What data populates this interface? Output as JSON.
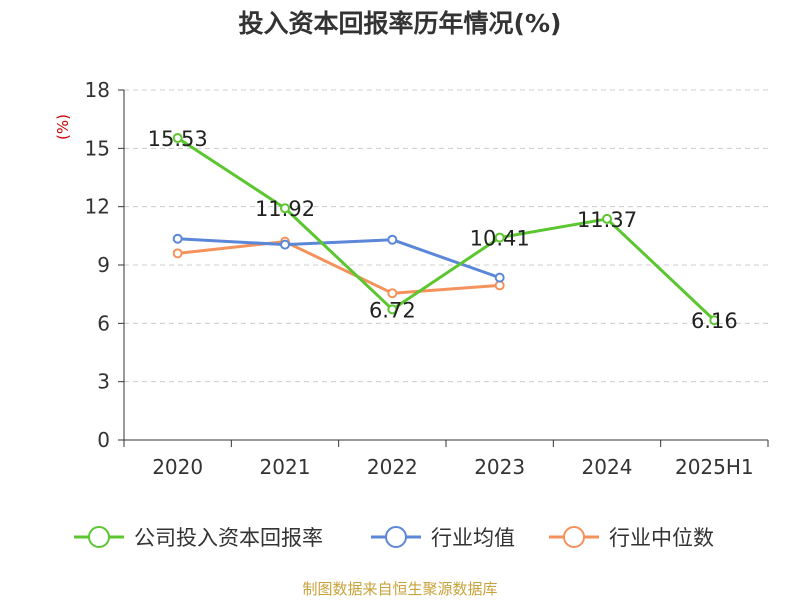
{
  "title": "投入资本回报率历年情况(%)",
  "footer": "制图数据来自恒生聚源数据库",
  "chart_data": {
    "type": "line",
    "title": "投入资本回报率历年情况(%)",
    "ylabel": "(%)",
    "ylim": [
      0,
      18
    ],
    "yticks": [
      0,
      3,
      6,
      9,
      12,
      15,
      18
    ],
    "categories": [
      "2020",
      "2021",
      "2022",
      "2023",
      "2024",
      "2025H1"
    ],
    "grid": true,
    "legend_position": "bottom",
    "series": [
      {
        "name": "公司投入资本回报率",
        "color": "#5cc631",
        "values": [
          15.53,
          11.92,
          6.72,
          10.41,
          11.37,
          6.16
        ],
        "labels": [
          "15.53",
          "11.92",
          "6.72",
          "10.41",
          "11.37",
          "6.16"
        ]
      },
      {
        "name": "行业均值",
        "color": "#5b87d8",
        "values": [
          10.35,
          10.05,
          10.3,
          8.35,
          null,
          null
        ]
      },
      {
        "name": "行业中位数",
        "color": "#f5925c",
        "values": [
          9.6,
          10.2,
          7.55,
          7.95,
          null,
          null
        ]
      }
    ]
  }
}
